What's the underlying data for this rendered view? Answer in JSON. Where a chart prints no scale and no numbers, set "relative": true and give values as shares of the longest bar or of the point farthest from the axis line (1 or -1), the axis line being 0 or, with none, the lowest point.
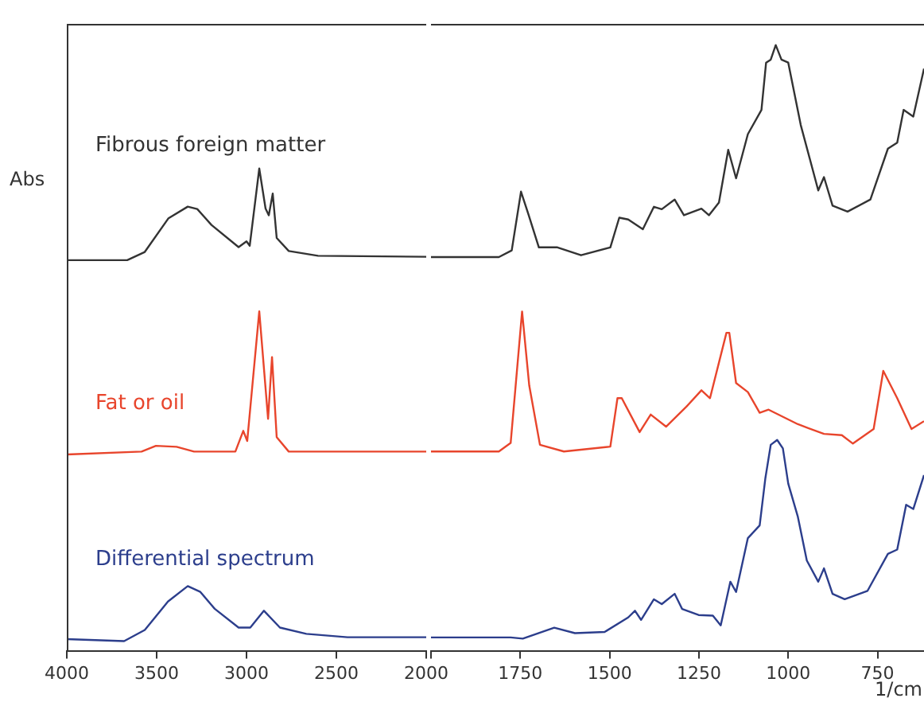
{
  "chart_data": [
    {
      "type": "line",
      "relative": true,
      "ylabel": "Abs",
      "xlim": [
        4000,
        2000
      ],
      "xticks": [
        4000,
        3500,
        3000,
        2500,
        2000
      ],
      "marker": "none",
      "line_style": "solid",
      "series": [
        {
          "name": "Fibrous foreign matter",
          "color": "#333333",
          "x": [
            4000,
            3664,
            3566,
            3434,
            3327,
            3274,
            3195,
            3044,
            3000,
            2982,
            2929,
            2894,
            2876,
            2854,
            2832,
            2765,
            2602,
            2000
          ],
          "values": [
            0.81,
            0.81,
            0.827,
            0.897,
            0.921,
            0.916,
            0.883,
            0.837,
            0.849,
            0.84,
            1,
            0.917,
            0.903,
            0.948,
            0.856,
            0.829,
            0.819,
            0.817
          ]
        },
        {
          "name": "Fat or oil",
          "color": "#e8452c",
          "x": [
            4000,
            3584,
            3504,
            3389,
            3292,
            3062,
            3018,
            2996,
            2929,
            2880,
            2858,
            2832,
            2765,
            2000
          ],
          "values": [
            0.407,
            0.413,
            0.425,
            0.423,
            0.413,
            0.413,
            0.456,
            0.435,
            0.704,
            0.481,
            0.609,
            0.443,
            0.413,
            0.413
          ]
        },
        {
          "name": "Differential spectrum",
          "color": "#2c3e8c",
          "x": [
            4000,
            3681,
            3566,
            3437,
            3327,
            3257,
            3177,
            3044,
            2979,
            2903,
            2814,
            2667,
            2438,
            2000
          ],
          "values": [
            0.024,
            0.02,
            0.043,
            0.102,
            0.134,
            0.122,
            0.087,
            0.048,
            0.048,
            0.083,
            0.048,
            0.035,
            0.028,
            0.028
          ]
        }
      ]
    },
    {
      "type": "line",
      "relative": true,
      "xlabel": "1/cm",
      "xlim": [
        2000,
        620
      ],
      "xticks": [
        {
          "value": 2000,
          "label": null
        },
        1750,
        1500,
        1250,
        1000,
        750
      ],
      "marker": "none",
      "line_style": "solid",
      "series": [
        {
          "color": "#333333",
          "x": [
            2000,
            1810,
            1774,
            1748,
            1727,
            1698,
            1646,
            1580,
            1498,
            1473,
            1448,
            1407,
            1376,
            1354,
            1318,
            1292,
            1243,
            1222,
            1194,
            1168,
            1146,
            1113,
            1075,
            1062,
            1049,
            1035,
            1019,
            1000,
            965,
            916,
            900,
            876,
            834,
            770,
            721,
            695,
            677,
            650,
            620
          ],
          "values": [
            0.65,
            0.65,
            0.661,
            0.758,
            0.72,
            0.666,
            0.666,
            0.653,
            0.666,
            0.715,
            0.712,
            0.696,
            0.733,
            0.729,
            0.745,
            0.719,
            0.73,
            0.719,
            0.74,
            0.827,
            0.78,
            0.853,
            0.893,
            0.971,
            0.976,
            1,
            0.976,
            0.971,
            0.868,
            0.76,
            0.782,
            0.735,
            0.725,
            0.745,
            0.829,
            0.839,
            0.893,
            0.882,
            0.961
          ]
        },
        {
          "color": "#e8452c",
          "x": [
            2000,
            1810,
            1777,
            1745,
            1725,
            1695,
            1628,
            1498,
            1478,
            1466,
            1416,
            1385,
            1342,
            1285,
            1243,
            1219,
            1173,
            1165,
            1146,
            1113,
            1080,
            1055,
            973,
            900,
            850,
            819,
            761,
            734,
            695,
            655,
            620
          ],
          "values": [
            0.329,
            0.329,
            0.343,
            0.56,
            0.438,
            0.34,
            0.329,
            0.337,
            0.417,
            0.417,
            0.361,
            0.39,
            0.37,
            0.403,
            0.43,
            0.417,
            0.525,
            0.525,
            0.442,
            0.427,
            0.393,
            0.398,
            0.374,
            0.358,
            0.356,
            0.342,
            0.366,
            0.462,
            0.417,
            0.366,
            0.379
          ]
        },
        {
          "color": "#2c3e8c",
          "x": [
            2000,
            1777,
            1743,
            1655,
            1597,
            1514,
            1448,
            1429,
            1412,
            1376,
            1354,
            1318,
            1297,
            1251,
            1211,
            1189,
            1162,
            1146,
            1113,
            1080,
            1064,
            1049,
            1031,
            1015,
            1000,
            973,
            948,
            916,
            900,
            876,
            842,
            778,
            721,
            695,
            670,
            650,
            620
          ],
          "values": [
            0.022,
            0.022,
            0.02,
            0.038,
            0.029,
            0.031,
            0.055,
            0.066,
            0.051,
            0.085,
            0.077,
            0.094,
            0.069,
            0.059,
            0.058,
            0.042,
            0.114,
            0.097,
            0.186,
            0.207,
            0.285,
            0.34,
            0.348,
            0.334,
            0.276,
            0.221,
            0.149,
            0.114,
            0.136,
            0.094,
            0.085,
            0.099,
            0.16,
            0.167,
            0.241,
            0.234,
            0.29
          ]
        }
      ]
    }
  ]
}
